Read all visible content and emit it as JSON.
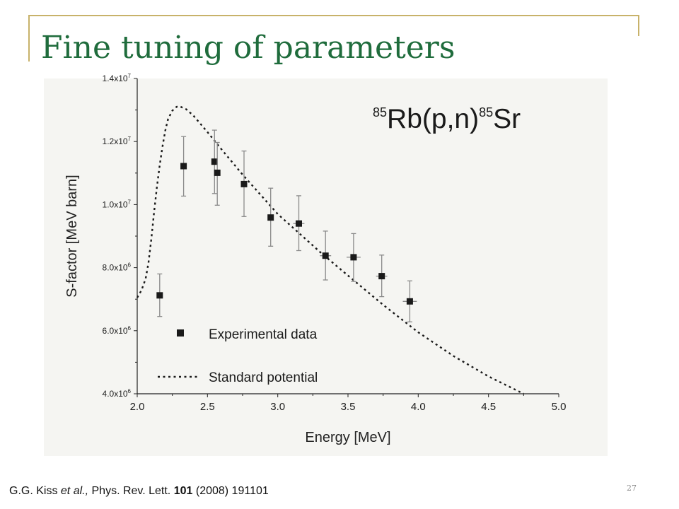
{
  "slide": {
    "title": "Fine tuning of parameters",
    "citation": {
      "authors": "G.G. Kiss",
      "etal": "et al.,",
      "journal": "Phys. Rev. Lett.",
      "volume": "101",
      "rest": "(2008) 191101"
    },
    "page_number": "27"
  },
  "chart_data": {
    "type": "scatter",
    "reaction": {
      "target_mass": "85",
      "target": "Rb(p,n)",
      "product_mass": "85",
      "product": "Sr"
    },
    "xlabel": "Energy [MeV]",
    "ylabel": "S-factor [MeV barn]",
    "xlim": [
      2.0,
      5.0
    ],
    "ylim": [
      4000000,
      14000000
    ],
    "xticks": [
      "2.0",
      "2.5",
      "3.0",
      "3.5",
      "4.0",
      "4.5",
      "5.0"
    ],
    "yticks": [
      {
        "value": 4000000,
        "mantissa": "4.0x10",
        "exp": "6"
      },
      {
        "value": 6000000,
        "mantissa": "6.0x10",
        "exp": "6"
      },
      {
        "value": 8000000,
        "mantissa": "8.0x10",
        "exp": "6"
      },
      {
        "value": 10000000,
        "mantissa": "1.0x10",
        "exp": "7"
      },
      {
        "value": 12000000,
        "mantissa": "1.2x10",
        "exp": "7"
      },
      {
        "value": 14000000,
        "mantissa": "1.4x10",
        "exp": "7"
      }
    ],
    "legend_position": "bottom-left",
    "series": [
      {
        "name": "Experimental data",
        "kind": "points",
        "color": "#1a1a1a",
        "errorbar_color": "#8a8a8a",
        "points": [
          {
            "x": 2.16,
            "y": 7120000,
            "ylo": 6450000,
            "yhi": 7800000,
            "xerr": 0.0
          },
          {
            "x": 2.33,
            "y": 11220000,
            "ylo": 10270000,
            "yhi": 12160000,
            "xerr": 0.0
          },
          {
            "x": 2.55,
            "y": 11360000,
            "ylo": 10350000,
            "yhi": 12360000,
            "xerr": 0.0
          },
          {
            "x": 2.57,
            "y": 11010000,
            "ylo": 9980000,
            "yhi": 11970000,
            "xerr": 0.0
          },
          {
            "x": 2.76,
            "y": 10650000,
            "ylo": 9620000,
            "yhi": 11700000,
            "xerr": 0.0
          },
          {
            "x": 2.95,
            "y": 9590000,
            "ylo": 8680000,
            "yhi": 10520000,
            "xerr": 0.0
          },
          {
            "x": 3.15,
            "y": 9400000,
            "ylo": 8540000,
            "yhi": 10280000,
            "xerr": 0.04
          },
          {
            "x": 3.34,
            "y": 8380000,
            "ylo": 7610000,
            "yhi": 9160000,
            "xerr": 0.04
          },
          {
            "x": 3.54,
            "y": 8330000,
            "ylo": 7560000,
            "yhi": 9080000,
            "xerr": 0.05
          },
          {
            "x": 3.74,
            "y": 7730000,
            "ylo": 7080000,
            "yhi": 8400000,
            "xerr": 0.04
          },
          {
            "x": 3.94,
            "y": 6930000,
            "ylo": 6280000,
            "yhi": 7580000,
            "xerr": 0.05
          }
        ]
      },
      {
        "name": "Standard potential",
        "kind": "line",
        "style": "dotted",
        "color": "#1a1a1a",
        "points": [
          {
            "x": 2.0,
            "y": 7050000
          },
          {
            "x": 2.03,
            "y": 7280000
          },
          {
            "x": 2.06,
            "y": 7650000
          },
          {
            "x": 2.08,
            "y": 8150000
          },
          {
            "x": 2.1,
            "y": 8900000
          },
          {
            "x": 2.12,
            "y": 9750000
          },
          {
            "x": 2.14,
            "y": 10550000
          },
          {
            "x": 2.16,
            "y": 11250000
          },
          {
            "x": 2.18,
            "y": 11850000
          },
          {
            "x": 2.2,
            "y": 12350000
          },
          {
            "x": 2.22,
            "y": 12720000
          },
          {
            "x": 2.25,
            "y": 12980000
          },
          {
            "x": 2.28,
            "y": 13100000
          },
          {
            "x": 2.3,
            "y": 13120000
          },
          {
            "x": 2.35,
            "y": 13020000
          },
          {
            "x": 2.4,
            "y": 12820000
          },
          {
            "x": 2.5,
            "y": 12300000
          },
          {
            "x": 2.6,
            "y": 11750000
          },
          {
            "x": 2.75,
            "y": 10950000
          },
          {
            "x": 2.9,
            "y": 10200000
          },
          {
            "x": 3.0,
            "y": 9700000
          },
          {
            "x": 3.15,
            "y": 9100000
          },
          {
            "x": 3.3,
            "y": 8500000
          },
          {
            "x": 3.5,
            "y": 7750000
          },
          {
            "x": 3.75,
            "y": 6820000
          },
          {
            "x": 4.0,
            "y": 5950000
          },
          {
            "x": 4.25,
            "y": 5200000
          },
          {
            "x": 4.5,
            "y": 4550000
          },
          {
            "x": 4.75,
            "y": 4000000
          }
        ]
      }
    ]
  }
}
